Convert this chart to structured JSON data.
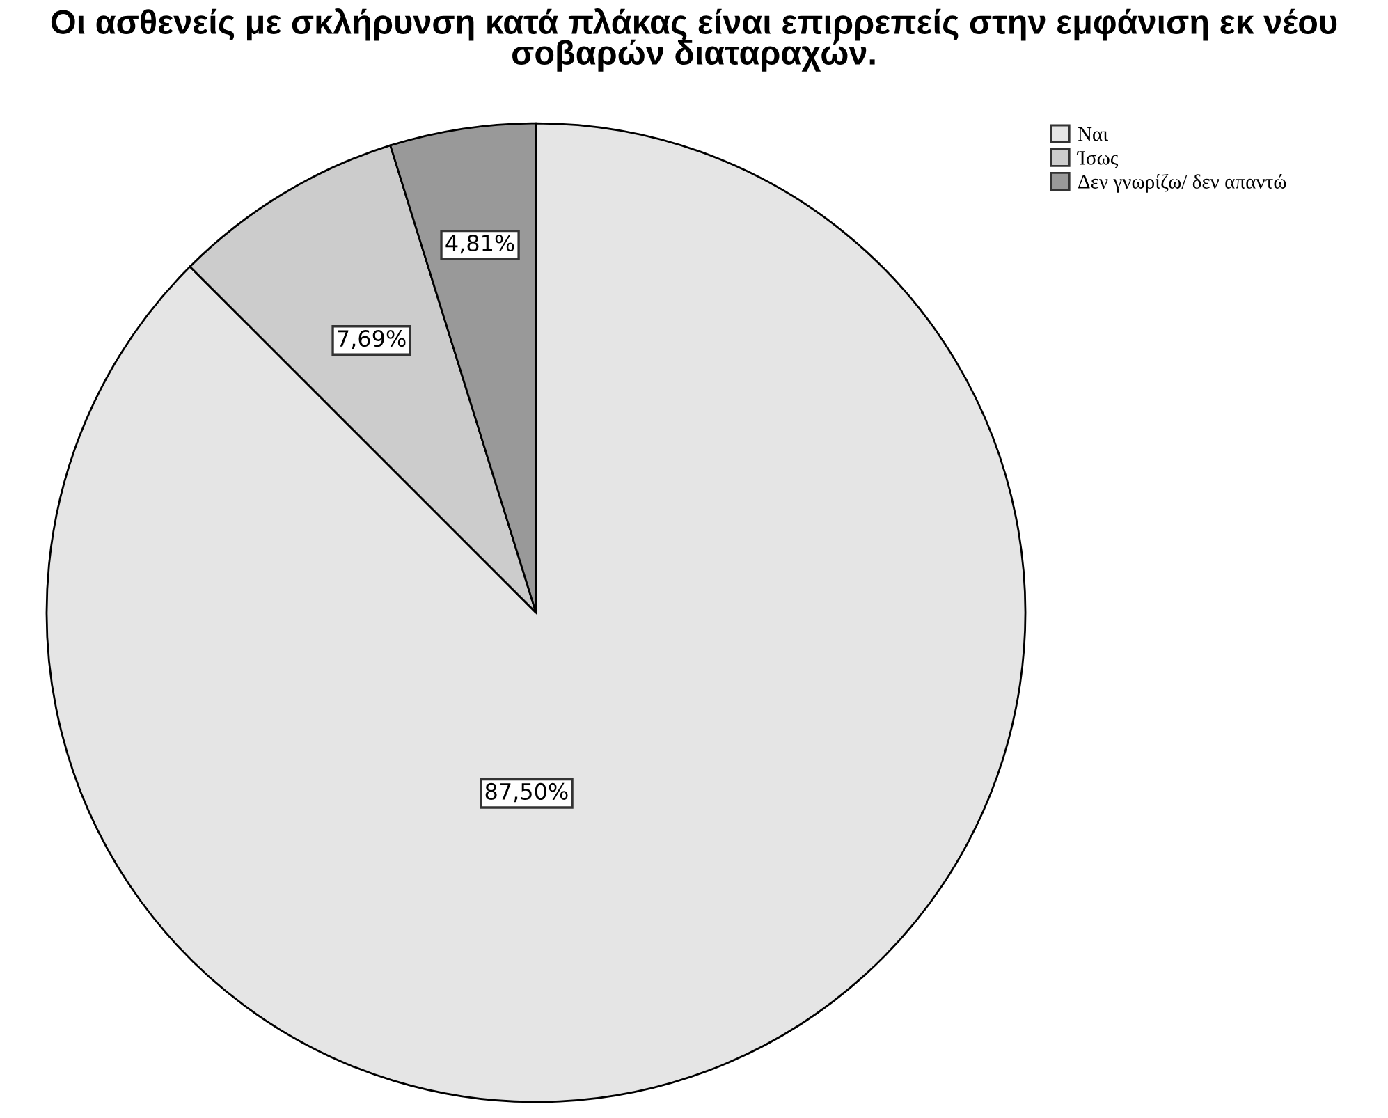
{
  "chart_data": {
    "type": "pie",
    "title": "Οι ασθενείς με σκλήρυνση κατά πλάκας είναι επιρρεπείς στην εμφάνιση εκ νέου σοβαρών διαταραχών.",
    "categories": [
      "Ναι",
      "Ίσως",
      "Δεν γνωρίζω/ δεν απαντώ"
    ],
    "values": [
      87.5,
      7.69,
      4.81
    ],
    "value_labels": [
      "87,50%",
      "7,69%",
      "4,81%"
    ],
    "colors": [
      "#e5e5e5",
      "#cccccc",
      "#999999"
    ],
    "legend": "top right"
  }
}
